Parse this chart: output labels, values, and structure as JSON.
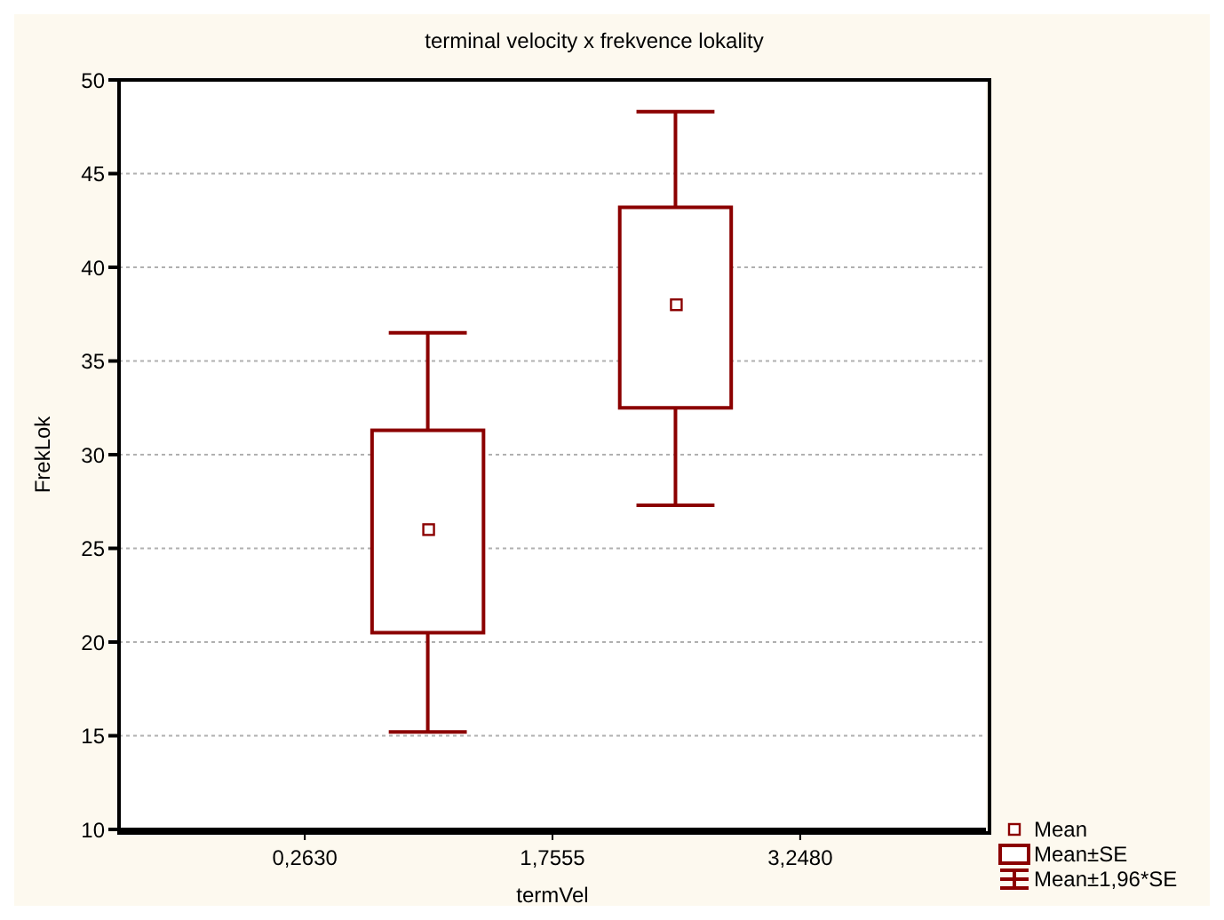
{
  "chart_data": {
    "type": "box",
    "title": "terminal velocity x frekvence lokality",
    "xlabel": "termVel",
    "ylabel": "FrekLok",
    "categories": [
      null,
      "0,2630",
      null,
      "1,7555",
      null,
      "3,2480",
      null
    ],
    "color": "#8b0000",
    "boxes": [
      null,
      null,
      {
        "low": 15.2,
        "q1": 20.5,
        "mean": 26.0,
        "q3": 31.3,
        "high": 36.5
      },
      null,
      {
        "low": 27.3,
        "q1": 32.5,
        "mean": 38.0,
        "q3": 43.2,
        "high": 48.3
      },
      null,
      null
    ],
    "ylim": [
      10,
      50
    ],
    "yticks": [
      10,
      15,
      20,
      25,
      30,
      35,
      40,
      45,
      50
    ],
    "grid": "y",
    "annotations": [
      "Mean",
      "Mean±SE",
      "Mean±1,96*SE"
    ]
  }
}
